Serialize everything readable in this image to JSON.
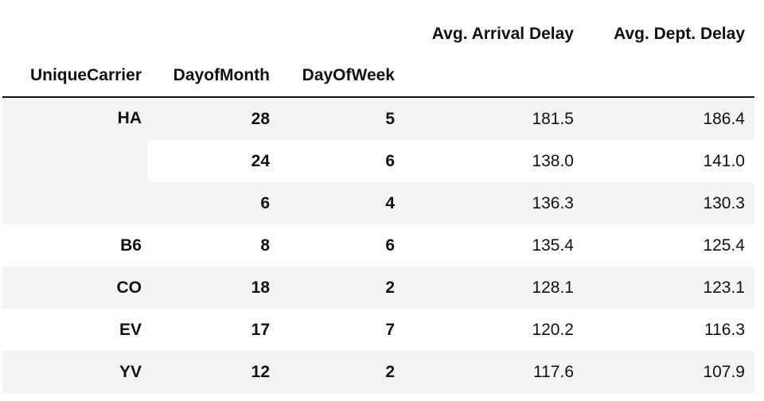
{
  "table": {
    "value_headers": [
      "Avg. Arrival Delay",
      "Avg. Dept. Delay"
    ],
    "index_headers": [
      "UniqueCarrier",
      "DayofMonth",
      "DayOfWeek"
    ],
    "groups": [
      {
        "carrier": "HA",
        "rows": [
          {
            "day_of_month": "28",
            "day_of_week": "5",
            "arrival": "181.5",
            "dept": "186.4"
          },
          {
            "day_of_month": "24",
            "day_of_week": "6",
            "arrival": "138.0",
            "dept": "141.0"
          },
          {
            "day_of_month": "6",
            "day_of_week": "4",
            "arrival": "136.3",
            "dept": "130.3"
          }
        ]
      },
      {
        "carrier": "B6",
        "rows": [
          {
            "day_of_month": "8",
            "day_of_week": "6",
            "arrival": "135.4",
            "dept": "125.4"
          }
        ]
      },
      {
        "carrier": "CO",
        "rows": [
          {
            "day_of_month": "18",
            "day_of_week": "2",
            "arrival": "128.1",
            "dept": "123.1"
          }
        ]
      },
      {
        "carrier": "EV",
        "rows": [
          {
            "day_of_month": "17",
            "day_of_week": "7",
            "arrival": "120.2",
            "dept": "116.3"
          }
        ]
      },
      {
        "carrier": "YV",
        "rows": [
          {
            "day_of_month": "12",
            "day_of_week": "2",
            "arrival": "117.6",
            "dept": "107.9"
          }
        ]
      }
    ]
  },
  "colors": {
    "stripe": "#f4f4f4",
    "text": "#111111",
    "rule": "#111111"
  }
}
